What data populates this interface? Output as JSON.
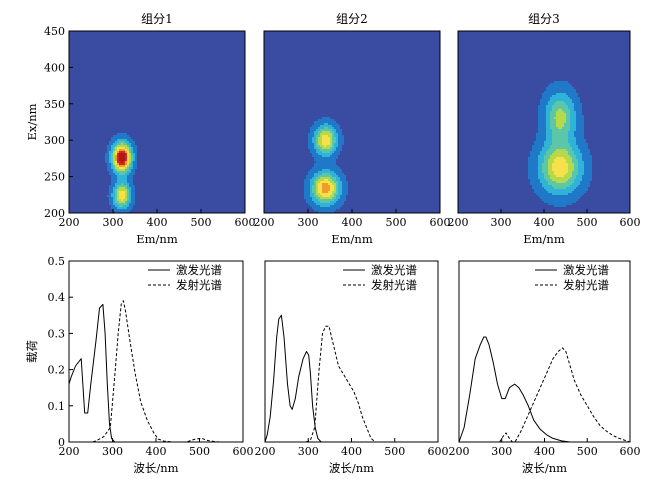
{
  "colors": {
    "map_background": "#3a4ca2",
    "colormap": [
      "#3a4ca2",
      "#1f78c8",
      "#2fb3d6",
      "#5cc7a8",
      "#b4d94a",
      "#f7e14a",
      "#f39b2a",
      "#d7261e",
      "#b01818"
    ]
  },
  "chart_data": [
    {
      "type": "heatmap",
      "title": "组分1",
      "xlabel": "Em/nm",
      "ylabel": "Ex/nm",
      "xlim": [
        200,
        600
      ],
      "ylim": [
        200,
        450
      ],
      "xticks": [
        "200",
        "300",
        "400",
        "500",
        "600"
      ],
      "yticks": [
        "200",
        "250",
        "300",
        "350",
        "400",
        "450"
      ],
      "peaks": [
        {
          "em": 320,
          "ex": 276,
          "intensity": 1.0,
          "sigma_em": 15,
          "sigma_ex": 14
        },
        {
          "em": 320,
          "ex": 224,
          "intensity": 0.62,
          "sigma_em": 14,
          "sigma_ex": 12
        }
      ]
    },
    {
      "type": "heatmap",
      "title": "组分2",
      "xlabel": "Em/nm",
      "ylabel": "",
      "xlim": [
        200,
        600
      ],
      "ylim": [
        200,
        450
      ],
      "xticks": [
        "200",
        "300",
        "400",
        "500",
        "600"
      ],
      "yticks": [],
      "peaks": [
        {
          "em": 340,
          "ex": 300,
          "intensity": 0.62,
          "sigma_em": 18,
          "sigma_ex": 14
        },
        {
          "em": 340,
          "ex": 234,
          "intensity": 0.72,
          "sigma_em": 22,
          "sigma_ex": 15
        }
      ]
    },
    {
      "type": "heatmap",
      "title": "组分3",
      "xlabel": "Em/nm",
      "ylabel": "",
      "xlim": [
        200,
        600
      ],
      "ylim": [
        200,
        450
      ],
      "xticks": [
        "200",
        "300",
        "400",
        "500",
        "600"
      ],
      "yticks": [],
      "peaks": [
        {
          "em": 438,
          "ex": 332,
          "intensity": 0.45,
          "sigma_em": 25,
          "sigma_ex": 24
        },
        {
          "em": 438,
          "ex": 262,
          "intensity": 0.6,
          "sigma_em": 34,
          "sigma_ex": 24
        }
      ]
    },
    {
      "type": "line",
      "xlabel": "波长/nm",
      "ylabel": "载荷",
      "xlim": [
        200,
        600
      ],
      "ylim": [
        0,
        0.5
      ],
      "xticks": [
        "200",
        "300",
        "400",
        "500",
        "600"
      ],
      "yticks": [
        "0",
        "0.1",
        "0.2",
        "0.3",
        "0.4",
        "0.5"
      ],
      "legend_position": "top-right",
      "series": [
        {
          "name": "激发光谱",
          "style": "solid",
          "x": [
            200,
            205,
            215,
            228,
            236,
            243,
            250,
            262,
            270,
            278,
            283,
            288,
            293,
            298,
            305
          ],
          "y": [
            0.16,
            0.18,
            0.21,
            0.23,
            0.08,
            0.08,
            0.16,
            0.28,
            0.37,
            0.38,
            0.3,
            0.16,
            0.05,
            0.01,
            0
          ]
        },
        {
          "name": "发射光谱",
          "style": "dashed",
          "x": [
            255,
            265,
            280,
            295,
            305,
            313,
            320,
            325,
            330,
            340,
            352,
            365,
            380,
            395,
            405,
            420,
            440,
            470,
            490,
            505,
            520,
            545
          ],
          "y": [
            0,
            0.005,
            0.015,
            0.04,
            0.18,
            0.3,
            0.38,
            0.39,
            0.36,
            0.28,
            0.19,
            0.11,
            0.06,
            0.025,
            0.008,
            0.002,
            0,
            0,
            0.008,
            0.01,
            0.004,
            0
          ]
        }
      ]
    },
    {
      "type": "line",
      "xlabel": "波长/nm",
      "ylabel": "",
      "xlim": [
        200,
        600
      ],
      "ylim": [
        0,
        0.5
      ],
      "xticks": [
        "200",
        "300",
        "400",
        "500",
        "600"
      ],
      "yticks": [],
      "legend_position": "top-right",
      "series": [
        {
          "name": "激发光谱",
          "style": "solid",
          "x": [
            200,
            205,
            212,
            220,
            227,
            232,
            238,
            244,
            252,
            258,
            263,
            270,
            278,
            288,
            296,
            301,
            305,
            310,
            316,
            322,
            330
          ],
          "y": [
            0,
            0.02,
            0.07,
            0.17,
            0.29,
            0.34,
            0.35,
            0.29,
            0.16,
            0.1,
            0.09,
            0.12,
            0.18,
            0.23,
            0.25,
            0.24,
            0.19,
            0.1,
            0.04,
            0.01,
            0
          ]
        },
        {
          "name": "发射光谱",
          "style": "dashed",
          "x": [
            295,
            305,
            315,
            325,
            333,
            340,
            348,
            358,
            370,
            385,
            395,
            405,
            415,
            425,
            435,
            445,
            455
          ],
          "y": [
            0,
            0.005,
            0.04,
            0.2,
            0.3,
            0.32,
            0.32,
            0.27,
            0.21,
            0.18,
            0.16,
            0.14,
            0.11,
            0.07,
            0.04,
            0.01,
            0
          ]
        }
      ]
    },
    {
      "type": "line",
      "xlabel": "波长/nm",
      "ylabel": "",
      "xlim": [
        200,
        600
      ],
      "ylim": [
        0,
        0.5
      ],
      "xticks": [
        "200",
        "300",
        "400",
        "500",
        "600"
      ],
      "yticks": [],
      "legend_position": "top-right",
      "series": [
        {
          "name": "激发光谱",
          "style": "solid",
          "x": [
            200,
            212,
            225,
            238,
            250,
            258,
            263,
            270,
            280,
            290,
            300,
            308,
            318,
            330,
            340,
            350,
            362,
            375,
            390,
            405,
            420,
            440,
            460
          ],
          "y": [
            0,
            0.04,
            0.13,
            0.23,
            0.27,
            0.29,
            0.29,
            0.27,
            0.22,
            0.16,
            0.12,
            0.12,
            0.15,
            0.16,
            0.15,
            0.13,
            0.1,
            0.06,
            0.035,
            0.02,
            0.01,
            0.003,
            0
          ]
        },
        {
          "name": "发射光谱",
          "style": "dashed",
          "x": [
            295,
            303,
            310,
            318,
            325,
            332,
            345,
            360,
            375,
            390,
            405,
            420,
            432,
            442,
            450,
            460,
            470,
            485,
            500,
            515,
            530,
            545,
            560,
            575,
            590,
            600
          ],
          "y": [
            0,
            0.015,
            0.025,
            0.01,
            0,
            0.002,
            0.03,
            0.07,
            0.11,
            0.15,
            0.19,
            0.23,
            0.25,
            0.26,
            0.25,
            0.21,
            0.17,
            0.13,
            0.1,
            0.07,
            0.045,
            0.03,
            0.018,
            0.01,
            0.004,
            0
          ]
        }
      ]
    }
  ]
}
